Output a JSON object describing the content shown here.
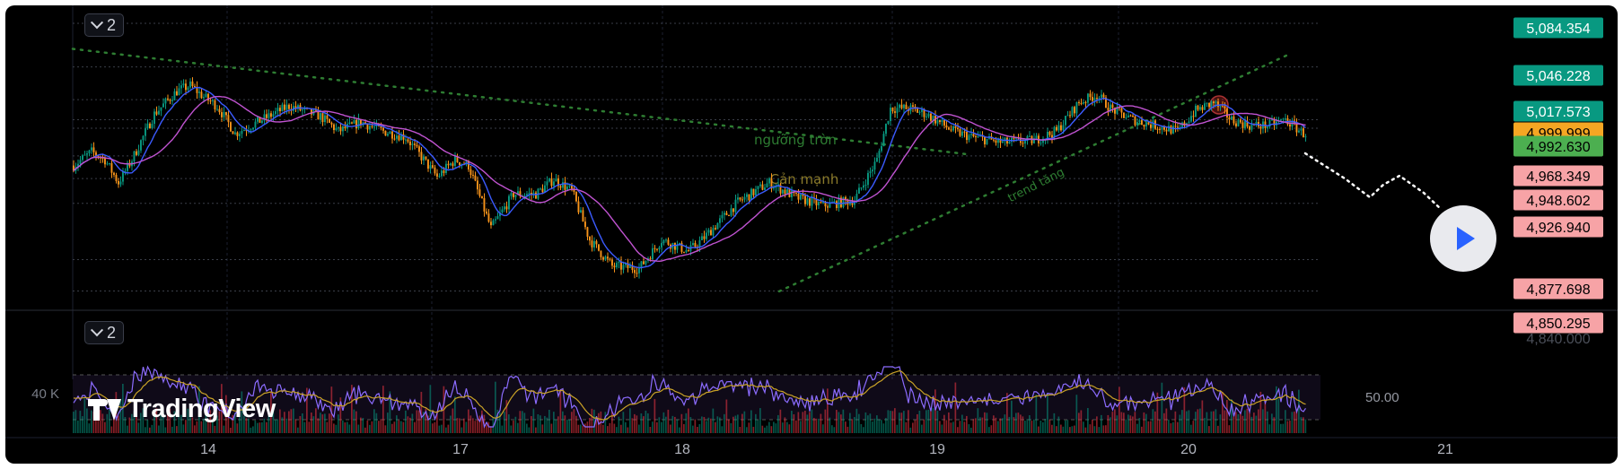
{
  "chart_data": {
    "type": "candlestick",
    "x_ticks": [
      "14",
      "17",
      "18",
      "19",
      "20",
      "21"
    ],
    "price_labels": [
      {
        "value": "5,084.354",
        "bg": "#089981",
        "fg": "#ffffff"
      },
      {
        "value": "5,046.228",
        "bg": "#089981",
        "fg": "#ffffff"
      },
      {
        "value": "5,017.573",
        "bg": "#089981",
        "fg": "#ffffff"
      },
      {
        "value": "4,999.999",
        "bg": "#f5a623",
        "fg": "#000000"
      },
      {
        "value": "4,992.630",
        "bg": "#4caf50",
        "fg": "#000000"
      },
      {
        "value": "4,968.349",
        "bg": "#f7a3a6",
        "fg": "#000000"
      },
      {
        "value": "4,948.602",
        "bg": "#f7a3a6",
        "fg": "#000000"
      },
      {
        "value": "4,926.940",
        "bg": "#f7a3a6",
        "fg": "#000000"
      },
      {
        "value": "4,877.698",
        "bg": "#f7a3a6",
        "fg": "#000000"
      },
      {
        "value": "4,850.295",
        "bg": "#f7a3a6",
        "fg": "#000000"
      },
      {
        "value": "4,840.000",
        "bg": "",
        "fg": "#4a4e58"
      }
    ],
    "ylim": [
      4835,
      5100
    ],
    "annotations": {
      "resistance_label": "ngưỡng tròn",
      "strong_resistance_label": "Cản mạnh",
      "trend_label": "trend tăng"
    },
    "volume_axis_label": "40 K",
    "oscillator_axis_label": "50.00",
    "series_count_main": "2",
    "series_count_lower": "2",
    "colors": {
      "up": "#089981",
      "down": "#f7931a",
      "ma_fast": "#3b5bff",
      "ma_slow": "#c053d1",
      "trend": "#2e7d32"
    }
  },
  "logo_text": "TradingView",
  "play_icon": "play-icon"
}
